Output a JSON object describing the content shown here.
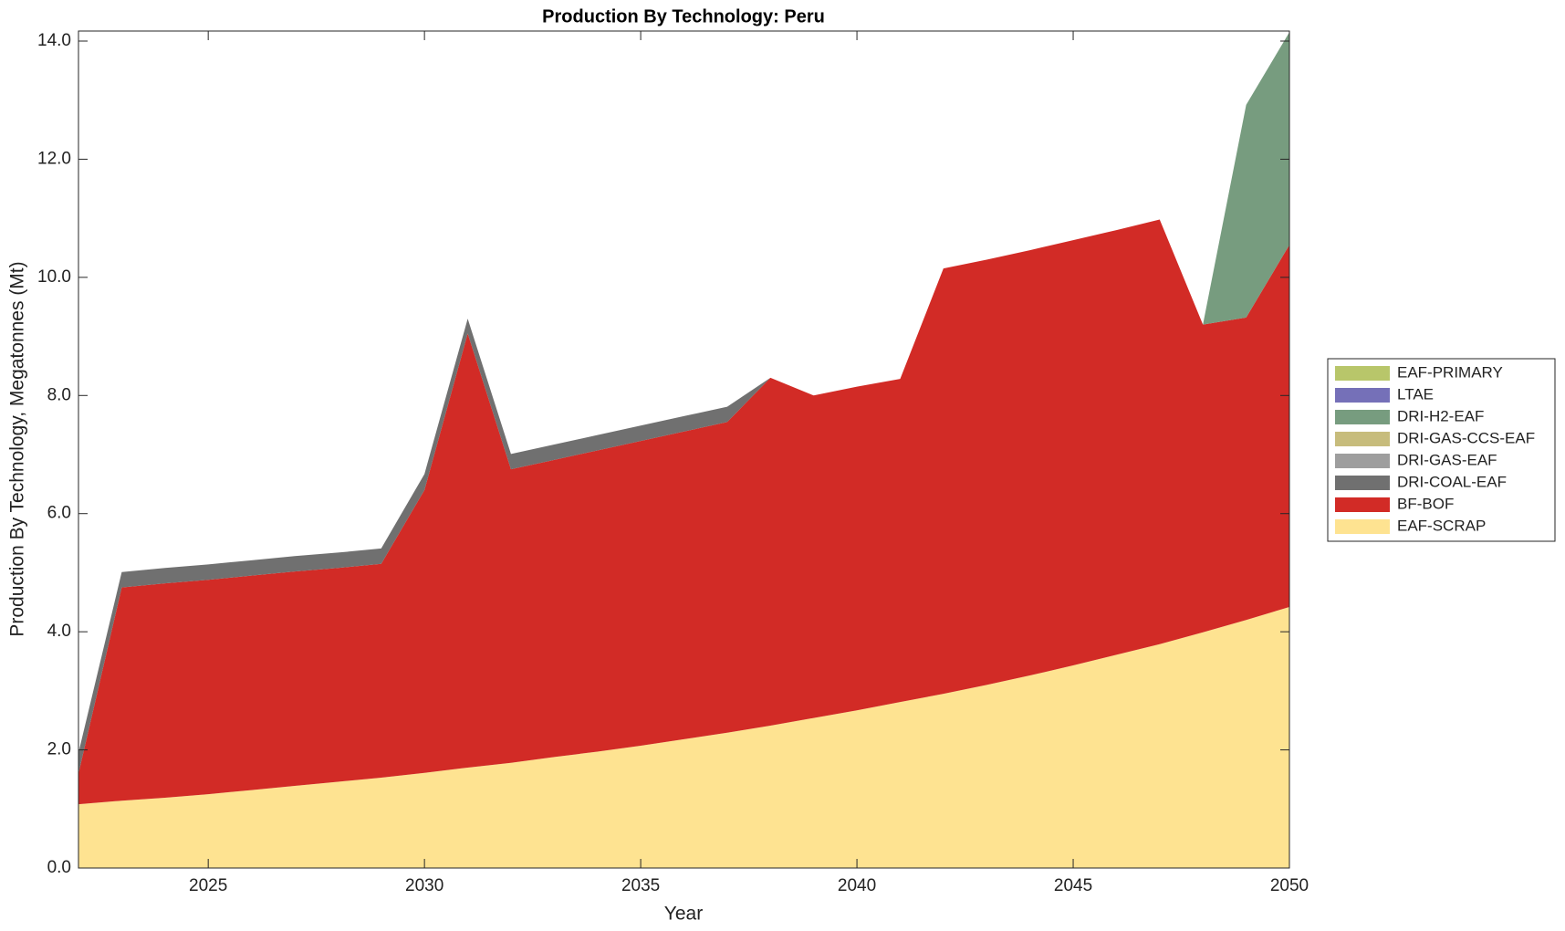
{
  "chart_data": {
    "type": "stacked_area",
    "title": "Production By Technology: Peru",
    "xlabel": "Year",
    "ylabel": "Production By Technology, Megatonnes (Mt)",
    "x": [
      2022,
      2023,
      2024,
      2025,
      2026,
      2027,
      2028,
      2029,
      2030,
      2031,
      2032,
      2033,
      2034,
      2035,
      2036,
      2037,
      2038,
      2039,
      2040,
      2041,
      2042,
      2043,
      2044,
      2045,
      2046,
      2047,
      2048,
      2049,
      2050
    ],
    "series": [
      {
        "name": "EAF-SCRAP",
        "color": "#fee391",
        "values": [
          1.08,
          1.14,
          1.19,
          1.25,
          1.32,
          1.39,
          1.46,
          1.53,
          1.61,
          1.7,
          1.78,
          1.88,
          1.97,
          2.07,
          2.18,
          2.29,
          2.41,
          2.54,
          2.67,
          2.81,
          2.95,
          3.1,
          3.26,
          3.43,
          3.61,
          3.79,
          3.99,
          4.2,
          4.42
        ]
      },
      {
        "name": "BF-BOF",
        "color": "#d22b26",
        "values": [
          0.52,
          3.61,
          3.63,
          3.63,
          3.63,
          3.63,
          3.62,
          3.62,
          4.79,
          7.35,
          4.97,
          5.03,
          5.1,
          5.16,
          5.21,
          5.26,
          5.89,
          5.46,
          5.48,
          5.47,
          7.2,
          7.2,
          7.2,
          7.2,
          7.19,
          7.19,
          5.21,
          5.12,
          6.13
        ]
      },
      {
        "name": "DRI-COAL-EAF",
        "color": "#707070",
        "values": [
          0.35,
          0.26,
          0.26,
          0.26,
          0.26,
          0.26,
          0.26,
          0.26,
          0.27,
          0.25,
          0.26,
          0.26,
          0.26,
          0.26,
          0.26,
          0.26,
          0,
          0,
          0,
          0,
          0,
          0,
          0,
          0,
          0,
          0,
          0,
          0,
          0
        ]
      },
      {
        "name": "DRI-GAS-EAF",
        "color": "#9e9e9e",
        "values": [
          0,
          0,
          0,
          0,
          0,
          0,
          0,
          0,
          0,
          0,
          0,
          0,
          0,
          0,
          0,
          0,
          0,
          0,
          0,
          0,
          0,
          0,
          0,
          0,
          0,
          0,
          0,
          0,
          0
        ]
      },
      {
        "name": "DRI-GAS-CCS-EAF",
        "color": "#c7bc7c",
        "values": [
          0,
          0,
          0,
          0,
          0,
          0,
          0,
          0,
          0,
          0,
          0,
          0,
          0,
          0,
          0,
          0,
          0,
          0,
          0,
          0,
          0,
          0,
          0,
          0,
          0,
          0,
          0,
          0,
          0
        ]
      },
      {
        "name": "DRI-H2-EAF",
        "color": "#779c7f",
        "values": [
          0,
          0,
          0,
          0,
          0,
          0,
          0,
          0,
          0,
          0,
          0,
          0,
          0,
          0,
          0,
          0,
          0,
          0,
          0,
          0,
          0,
          0,
          0,
          0,
          0,
          0,
          0,
          3.6,
          3.6
        ]
      },
      {
        "name": "LTAE",
        "color": "#7570b8",
        "values": [
          0,
          0,
          0,
          0,
          0,
          0,
          0,
          0,
          0,
          0,
          0,
          0,
          0,
          0,
          0,
          0,
          0,
          0,
          0,
          0,
          0,
          0,
          0,
          0,
          0,
          0,
          0,
          0,
          0
        ]
      },
      {
        "name": "EAF-PRIMARY",
        "color": "#b8c66a",
        "values": [
          0,
          0,
          0,
          0,
          0,
          0,
          0,
          0,
          0,
          0,
          0,
          0,
          0,
          0,
          0,
          0,
          0,
          0,
          0,
          0,
          0,
          0,
          0,
          0,
          0,
          0,
          0,
          0,
          0
        ]
      }
    ],
    "xlim": [
      2022,
      2050
    ],
    "ylim": [
      0,
      14.17
    ],
    "xticks": [
      2025,
      2030,
      2035,
      2040,
      2045,
      2050
    ],
    "yticks": [
      {
        "value": 0,
        "label": "0.0"
      },
      {
        "value": 2,
        "label": "2.0"
      },
      {
        "value": 4,
        "label": "4.0"
      },
      {
        "value": 6,
        "label": "6.0"
      },
      {
        "value": 8,
        "label": "8.0"
      },
      {
        "value": 10,
        "label": "10.0"
      },
      {
        "value": 12,
        "label": "12.0"
      },
      {
        "value": 14,
        "label": "14.0"
      }
    ],
    "legend": "right"
  }
}
